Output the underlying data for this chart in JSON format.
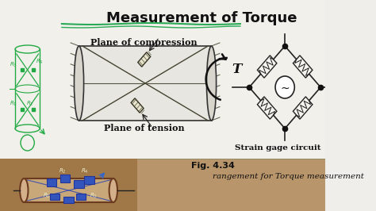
{
  "title": "Measurement of Torque",
  "subtitle_top": "Plane of compression",
  "subtitle_bottom": "Plane of tension",
  "strain_label": "Strain gage circuit",
  "torque_label": "T",
  "fig_label": "Fig. 4.34",
  "arrangement_label": "rangement for Torque measurement",
  "bg_top": "#f0eeea",
  "bg_bottom": "#c8a070",
  "text_color": "#111111",
  "green_color": "#22aa44",
  "shaft_color": "#d8d5cc",
  "line_color": "#333333"
}
